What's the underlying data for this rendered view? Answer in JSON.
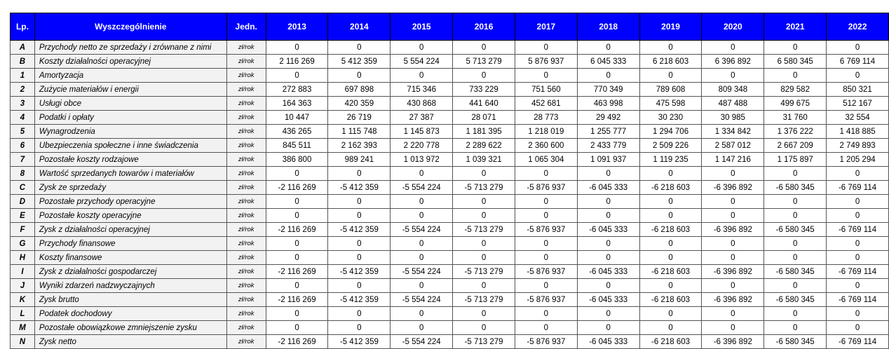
{
  "header": {
    "lp": "Lp.",
    "name": "Wyszczególnienie",
    "unit": "Jedn.",
    "years": [
      "2013",
      "2014",
      "2015",
      "2016",
      "2017",
      "2018",
      "2019",
      "2020",
      "2021",
      "2022"
    ]
  },
  "rows": [
    {
      "lp": "A",
      "name": "Przychody netto ze sprzedaży i zrównane z nimi",
      "unit": "zł/rok",
      "values": [
        "0",
        "0",
        "0",
        "0",
        "0",
        "0",
        "0",
        "0",
        "0",
        "0"
      ]
    },
    {
      "lp": "B",
      "name": "Koszty działalności operacyjnej",
      "unit": "zł/rok",
      "values": [
        "2 116 269",
        "5 412 359",
        "5 554 224",
        "5 713 279",
        "5 876 937",
        "6 045 333",
        "6 218 603",
        "6 396 892",
        "6 580 345",
        "6 769 114"
      ]
    },
    {
      "lp": "1",
      "name": "Amortyzacja",
      "unit": "zł/rok",
      "values": [
        "0",
        "0",
        "0",
        "0",
        "0",
        "0",
        "0",
        "0",
        "0",
        "0"
      ]
    },
    {
      "lp": "2",
      "name": "Zużycie materiałów i energii",
      "unit": "zł/rok",
      "values": [
        "272 883",
        "697 898",
        "715 346",
        "733 229",
        "751 560",
        "770 349",
        "789 608",
        "809 348",
        "829 582",
        "850 321"
      ]
    },
    {
      "lp": "3",
      "name": "Usługi obce",
      "unit": "zł/rok",
      "values": [
        "164 363",
        "420 359",
        "430 868",
        "441 640",
        "452 681",
        "463 998",
        "475 598",
        "487 488",
        "499 675",
        "512 167"
      ]
    },
    {
      "lp": "4",
      "name": "Podatki i opłaty",
      "unit": "zł/rok",
      "values": [
        "10 447",
        "26 719",
        "27 387",
        "28 071",
        "28 773",
        "29 492",
        "30 230",
        "30 985",
        "31 760",
        "32 554"
      ]
    },
    {
      "lp": "5",
      "name": "Wynagrodzenia",
      "unit": "zł/rok",
      "values": [
        "436 265",
        "1 115 748",
        "1 145 873",
        "1 181 395",
        "1 218 019",
        "1 255 777",
        "1 294 706",
        "1 334 842",
        "1 376 222",
        "1 418 885"
      ]
    },
    {
      "lp": "6",
      "name": "Ubezpieczenia społeczne i inne świadczenia",
      "unit": "zł/rok",
      "values": [
        "845 511",
        "2 162 393",
        "2 220 778",
        "2 289 622",
        "2 360 600",
        "2 433 779",
        "2 509 226",
        "2 587 012",
        "2 667 209",
        "2 749 893"
      ]
    },
    {
      "lp": "7",
      "name": "Pozostałe koszty rodzajowe",
      "unit": "zł/rok",
      "values": [
        "386 800",
        "989 241",
        "1 013 972",
        "1 039 321",
        "1 065 304",
        "1 091 937",
        "1 119 235",
        "1 147 216",
        "1 175 897",
        "1 205 294"
      ]
    },
    {
      "lp": "8",
      "name": "Wartość sprzedanych towarów i materiałów",
      "unit": "zł/rok",
      "values": [
        "0",
        "0",
        "0",
        "0",
        "0",
        "0",
        "0",
        "0",
        "0",
        "0"
      ]
    },
    {
      "lp": "C",
      "name": "Zysk ze sprzedaży",
      "unit": "zł/rok",
      "values": [
        "-2 116 269",
        "-5 412 359",
        "-5 554 224",
        "-5 713 279",
        "-5 876 937",
        "-6 045 333",
        "-6 218 603",
        "-6 396 892",
        "-6 580 345",
        "-6 769 114"
      ]
    },
    {
      "lp": "D",
      "name": "Pozostałe przychody operacyjne",
      "unit": "zł/rok",
      "values": [
        "0",
        "0",
        "0",
        "0",
        "0",
        "0",
        "0",
        "0",
        "0",
        "0"
      ]
    },
    {
      "lp": "E",
      "name": "Pozostałe koszty operacyjne",
      "unit": "zł/rok",
      "values": [
        "0",
        "0",
        "0",
        "0",
        "0",
        "0",
        "0",
        "0",
        "0",
        "0"
      ]
    },
    {
      "lp": "F",
      "name": "Zysk z działalności operacyjnej",
      "unit": "zł/rok",
      "values": [
        "-2 116 269",
        "-5 412 359",
        "-5 554 224",
        "-5 713 279",
        "-5 876 937",
        "-6 045 333",
        "-6 218 603",
        "-6 396 892",
        "-6 580 345",
        "-6 769 114"
      ]
    },
    {
      "lp": "G",
      "name": "Przychody finansowe",
      "unit": "zł/rok",
      "values": [
        "0",
        "0",
        "0",
        "0",
        "0",
        "0",
        "0",
        "0",
        "0",
        "0"
      ]
    },
    {
      "lp": "H",
      "name": "Koszty finansowe",
      "unit": "zł/rok",
      "values": [
        "0",
        "0",
        "0",
        "0",
        "0",
        "0",
        "0",
        "0",
        "0",
        "0"
      ]
    },
    {
      "lp": "I",
      "name": "Zysk z działalności gospodarczej",
      "unit": "zł/rok",
      "values": [
        "-2 116 269",
        "-5 412 359",
        "-5 554 224",
        "-5 713 279",
        "-5 876 937",
        "-6 045 333",
        "-6 218 603",
        "-6 396 892",
        "-6 580 345",
        "-6 769 114"
      ]
    },
    {
      "lp": "J",
      "name": "Wyniki zdarzeń nadzwyczajnych",
      "unit": "zł/rok",
      "values": [
        "0",
        "0",
        "0",
        "0",
        "0",
        "0",
        "0",
        "0",
        "0",
        "0"
      ]
    },
    {
      "lp": "K",
      "name": "Zysk brutto",
      "unit": "zł/rok",
      "values": [
        "-2 116 269",
        "-5 412 359",
        "-5 554 224",
        "-5 713 279",
        "-5 876 937",
        "-6 045 333",
        "-6 218 603",
        "-6 396 892",
        "-6 580 345",
        "-6 769 114"
      ]
    },
    {
      "lp": "L",
      "name": "Podatek dochodowy",
      "unit": "zł/rok",
      "values": [
        "0",
        "0",
        "0",
        "0",
        "0",
        "0",
        "0",
        "0",
        "0",
        "0"
      ]
    },
    {
      "lp": "M",
      "name": "Pozostałe obowiązkowe zmniejszenie zysku",
      "unit": "zł/rok",
      "values": [
        "0",
        "0",
        "0",
        "0",
        "0",
        "0",
        "0",
        "0",
        "0",
        "0"
      ]
    },
    {
      "lp": "N",
      "name": "Zysk netto",
      "unit": "zł/rok",
      "values": [
        "-2 116 269",
        "-5 412 359",
        "-5 554 224",
        "-5 713 279",
        "-5 876 937",
        "-6 045 333",
        "-6 218 603",
        "-6 396 892",
        "-6 580 345",
        "-6 769 114"
      ]
    }
  ]
}
